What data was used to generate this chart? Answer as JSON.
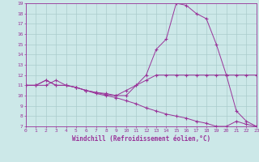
{
  "xlabel": "Windchill (Refroidissement éolien,°C)",
  "line1_x": [
    0,
    1,
    2,
    3,
    4,
    5,
    6,
    7,
    8,
    9,
    10,
    11,
    12,
    13,
    14,
    15,
    16,
    17,
    18,
    19,
    20,
    21,
    22,
    23
  ],
  "line1_y": [
    11.0,
    11.0,
    11.5,
    11.0,
    11.0,
    10.8,
    10.5,
    10.3,
    10.2,
    10.0,
    10.5,
    11.0,
    12.0,
    14.5,
    15.5,
    19.0,
    18.8,
    18.0,
    17.5,
    15.0,
    12.0,
    12.0,
    12.0,
    12.0
  ],
  "line2_x": [
    0,
    1,
    2,
    3,
    4,
    5,
    6,
    7,
    8,
    9,
    10,
    11,
    12,
    13,
    14,
    15,
    16,
    17,
    18,
    19,
    20,
    21,
    22,
    23
  ],
  "line2_y": [
    11.0,
    11.0,
    11.0,
    11.5,
    11.0,
    10.8,
    10.5,
    10.2,
    10.0,
    9.8,
    9.5,
    9.2,
    8.8,
    8.5,
    8.2,
    8.0,
    7.8,
    7.5,
    7.3,
    7.0,
    7.0,
    7.5,
    7.2,
    7.0
  ],
  "line3_x": [
    0,
    1,
    2,
    3,
    4,
    5,
    6,
    7,
    8,
    9,
    10,
    11,
    12,
    13,
    14,
    15,
    16,
    17,
    18,
    19,
    20,
    21,
    22,
    23
  ],
  "line3_y": [
    11.0,
    11.0,
    11.5,
    11.0,
    11.0,
    10.8,
    10.5,
    10.3,
    10.1,
    10.0,
    10.0,
    11.0,
    11.5,
    12.0,
    12.0,
    12.0,
    12.0,
    12.0,
    12.0,
    12.0,
    12.0,
    8.5,
    7.5,
    7.0
  ],
  "line_color": "#993399",
  "bg_color": "#cce8e8",
  "grid_color": "#aacccc",
  "xlim": [
    0,
    23
  ],
  "ylim": [
    7,
    19
  ],
  "yticks": [
    7,
    8,
    9,
    10,
    11,
    12,
    13,
    14,
    15,
    16,
    17,
    18,
    19
  ],
  "xticks": [
    0,
    1,
    2,
    3,
    4,
    5,
    6,
    7,
    8,
    9,
    10,
    11,
    12,
    13,
    14,
    15,
    16,
    17,
    18,
    19,
    20,
    21,
    22,
    23
  ],
  "tick_fontsize": 4.5,
  "xlabel_fontsize": 5.5
}
